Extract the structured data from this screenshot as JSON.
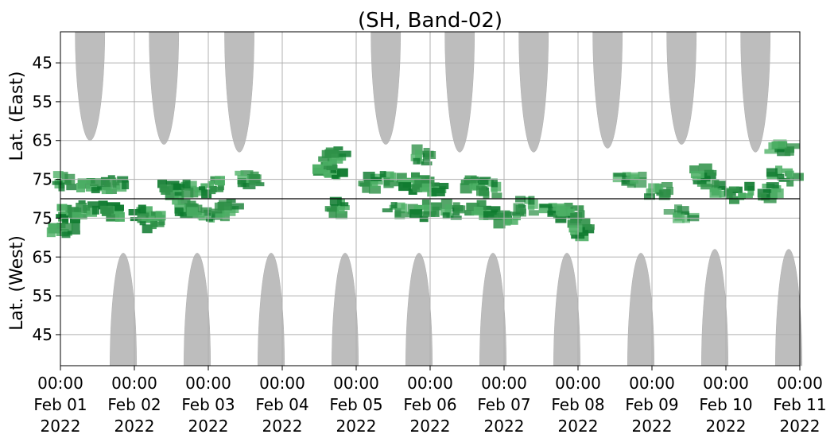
{
  "chart_data": {
    "type": "heatmap",
    "title": "(SH, Band-02)",
    "xlabel": "",
    "grid": true,
    "x_range": [
      "2022-02-01T00:00",
      "2022-02-11T00:00"
    ],
    "x_ticks": [
      {
        "time": "00:00",
        "date": "Feb 01",
        "year": "2022",
        "day": 0
      },
      {
        "time": "00:00",
        "date": "Feb 02",
        "year": "2022",
        "day": 1
      },
      {
        "time": "00:00",
        "date": "Feb 03",
        "year": "2022",
        "day": 2
      },
      {
        "time": "00:00",
        "date": "Feb 04",
        "year": "2022",
        "day": 3
      },
      {
        "time": "00:00",
        "date": "Feb 05",
        "year": "2022",
        "day": 4
      },
      {
        "time": "00:00",
        "date": "Feb 06",
        "year": "2022",
        "day": 5
      },
      {
        "time": "00:00",
        "date": "Feb 07",
        "year": "2022",
        "day": 6
      },
      {
        "time": "00:00",
        "date": "Feb 08",
        "year": "2022",
        "day": 7
      },
      {
        "time": "00:00",
        "date": "Feb 09",
        "year": "2022",
        "day": 8
      },
      {
        "time": "00:00",
        "date": "Feb 10",
        "year": "2022",
        "day": 9
      },
      {
        "time": "00:00",
        "date": "Feb 11",
        "year": "2022",
        "day": 10
      }
    ],
    "panels": [
      {
        "name": "east",
        "ylabel": "Lat. (East)",
        "ylim": [
          37,
          80
        ],
        "yticks": [
          45,
          55,
          65,
          75
        ],
        "gray_regions": [
          {
            "center_day": 0.4,
            "width_days": 0.4,
            "min_lat": 65
          },
          {
            "center_day": 1.4,
            "width_days": 0.4,
            "min_lat": 66
          },
          {
            "center_day": 2.42,
            "width_days": 0.4,
            "min_lat": 68
          },
          {
            "center_day": 4.4,
            "width_days": 0.4,
            "min_lat": 66
          },
          {
            "center_day": 5.4,
            "width_days": 0.4,
            "min_lat": 68
          },
          {
            "center_day": 6.4,
            "width_days": 0.4,
            "min_lat": 68
          },
          {
            "center_day": 7.4,
            "width_days": 0.4,
            "min_lat": 67
          },
          {
            "center_day": 8.4,
            "width_days": 0.4,
            "min_lat": 66
          },
          {
            "center_day": 9.4,
            "width_days": 0.4,
            "min_lat": 68
          }
        ],
        "green_patches": [
          {
            "day": 0.05,
            "lat": 75.5,
            "intensity": 0.5
          },
          {
            "day": 0.45,
            "lat": 76.5,
            "intensity": 0.7
          },
          {
            "day": 0.75,
            "lat": 76.5,
            "intensity": 0.6
          },
          {
            "day": 1.5,
            "lat": 77.5,
            "intensity": 0.8
          },
          {
            "day": 1.75,
            "lat": 77.5,
            "intensity": 0.6
          },
          {
            "day": 2.05,
            "lat": 77,
            "intensity": 0.8
          },
          {
            "day": 2.55,
            "lat": 75,
            "intensity": 0.5
          },
          {
            "day": 3.65,
            "lat": 73,
            "intensity": 0.9
          },
          {
            "day": 3.7,
            "lat": 69,
            "intensity": 0.7
          },
          {
            "day": 4.2,
            "lat": 76,
            "intensity": 0.6
          },
          {
            "day": 4.45,
            "lat": 75,
            "intensity": 0.7
          },
          {
            "day": 4.8,
            "lat": 76,
            "intensity": 0.9
          },
          {
            "day": 4.9,
            "lat": 69,
            "intensity": 0.5
          },
          {
            "day": 5.0,
            "lat": 77,
            "intensity": 0.8
          },
          {
            "day": 5.6,
            "lat": 76,
            "intensity": 0.7
          },
          {
            "day": 5.8,
            "lat": 77.5,
            "intensity": 0.6
          },
          {
            "day": 7.7,
            "lat": 75,
            "intensity": 0.4
          },
          {
            "day": 8.1,
            "lat": 78,
            "intensity": 0.5
          },
          {
            "day": 8.7,
            "lat": 74,
            "intensity": 0.7
          },
          {
            "day": 8.9,
            "lat": 77.5,
            "intensity": 0.6
          },
          {
            "day": 9.2,
            "lat": 78.5,
            "intensity": 0.8
          },
          {
            "day": 9.6,
            "lat": 78.5,
            "intensity": 0.6
          },
          {
            "day": 9.8,
            "lat": 74,
            "intensity": 0.7
          },
          {
            "day": 9.75,
            "lat": 67,
            "intensity": 0.5
          }
        ]
      },
      {
        "name": "west",
        "ylabel": "Lat. (West)",
        "ylim": [
          37,
          80
        ],
        "yticks": [
          45,
          55,
          65,
          75
        ],
        "gray_regions": [
          {
            "center_day": 0.85,
            "width_days": 0.36,
            "min_lat": 66
          },
          {
            "center_day": 1.85,
            "width_days": 0.36,
            "min_lat": 66
          },
          {
            "center_day": 2.85,
            "width_days": 0.36,
            "min_lat": 66
          },
          {
            "center_day": 3.85,
            "width_days": 0.36,
            "min_lat": 66
          },
          {
            "center_day": 4.85,
            "width_days": 0.36,
            "min_lat": 66
          },
          {
            "center_day": 5.85,
            "width_days": 0.36,
            "min_lat": 66
          },
          {
            "center_day": 6.85,
            "width_days": 0.36,
            "min_lat": 66
          },
          {
            "center_day": 7.85,
            "width_days": 0.36,
            "min_lat": 66
          },
          {
            "center_day": 8.85,
            "width_days": 0.36,
            "min_lat": 67
          },
          {
            "center_day": 9.85,
            "width_days": 0.36,
            "min_lat": 67
          }
        ],
        "green_patches": [
          {
            "day": 0.1,
            "lat": 76,
            "intensity": 0.9
          },
          {
            "day": 0.05,
            "lat": 72,
            "intensity": 0.6
          },
          {
            "day": 0.35,
            "lat": 77,
            "intensity": 0.7
          },
          {
            "day": 0.7,
            "lat": 77,
            "intensity": 0.9
          },
          {
            "day": 1.15,
            "lat": 76,
            "intensity": 0.8
          },
          {
            "day": 1.25,
            "lat": 74,
            "intensity": 0.7
          },
          {
            "day": 1.7,
            "lat": 77.5,
            "intensity": 0.7
          },
          {
            "day": 1.95,
            "lat": 76,
            "intensity": 0.6
          },
          {
            "day": 2.25,
            "lat": 77.5,
            "intensity": 0.5
          },
          {
            "day": 3.75,
            "lat": 77.5,
            "intensity": 0.7
          },
          {
            "day": 4.6,
            "lat": 77,
            "intensity": 0.5
          },
          {
            "day": 4.95,
            "lat": 77,
            "intensity": 0.8
          },
          {
            "day": 5.3,
            "lat": 77,
            "intensity": 0.6
          },
          {
            "day": 5.7,
            "lat": 77,
            "intensity": 0.8
          },
          {
            "day": 6.05,
            "lat": 75,
            "intensity": 0.7
          },
          {
            "day": 6.3,
            "lat": 78,
            "intensity": 0.4
          },
          {
            "day": 6.7,
            "lat": 77,
            "intensity": 0.7
          },
          {
            "day": 6.9,
            "lat": 76,
            "intensity": 0.8
          },
          {
            "day": 7.05,
            "lat": 72,
            "intensity": 0.8
          },
          {
            "day": 8.4,
            "lat": 76,
            "intensity": 0.3
          }
        ]
      }
    ]
  }
}
